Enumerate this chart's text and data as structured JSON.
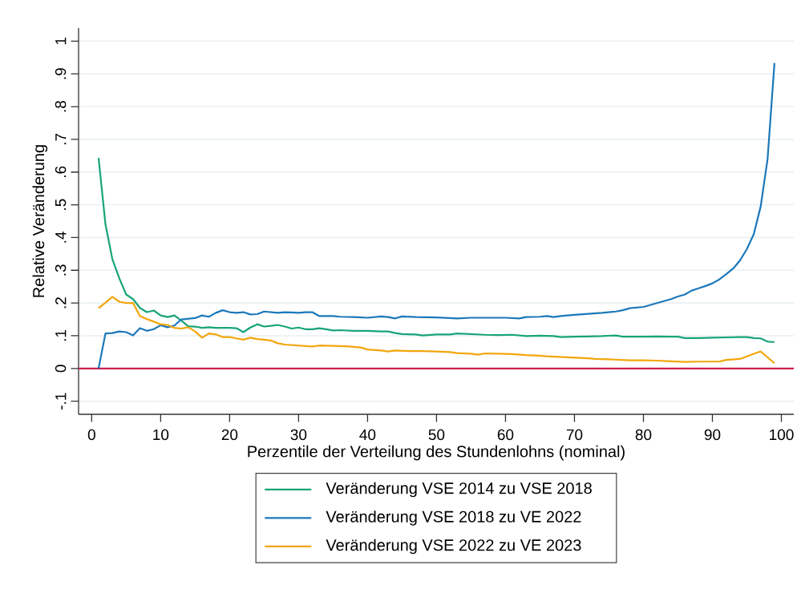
{
  "chart_data": {
    "type": "line",
    "xlabel": "Perzentile der Verteilung des Stundenlohns (nominal)",
    "ylabel": "Relative Veränderung",
    "xlim": [
      -1.9,
      101.8
    ],
    "ylim": [
      -0.14,
      1.04
    ],
    "xticks": [
      0,
      10,
      20,
      30,
      40,
      50,
      60,
      70,
      80,
      90,
      100
    ],
    "yticks": [
      {
        "value": -0.1,
        "label": "-.1"
      },
      0,
      {
        "value": 0.1,
        "label": ".1"
      },
      {
        "value": 0.2,
        "label": ".2"
      },
      {
        "value": 0.3,
        "label": ".3"
      },
      {
        "value": 0.4,
        "label": ".4"
      },
      {
        "value": 0.5,
        "label": ".5"
      },
      {
        "value": 0.6,
        "label": ".6"
      },
      {
        "value": 0.7,
        "label": ".7"
      },
      {
        "value": 0.8,
        "label": ".8"
      },
      {
        "value": 0.9,
        "label": ".9"
      },
      1
    ],
    "grid": "y",
    "legend": "bottom",
    "ref_lines": [
      {
        "axis": "y",
        "value": 0,
        "color": "#cc1f4f"
      }
    ],
    "series": [
      {
        "name": "Veränderung VSE 2014 zu VSE 2018",
        "color": "#18a47a",
        "x": [
          1,
          2,
          3,
          4,
          5,
          6,
          7,
          8,
          9,
          10,
          11,
          12,
          13,
          14,
          15,
          16,
          17,
          18,
          19,
          20,
          21,
          22,
          23,
          24,
          25,
          26,
          27,
          28,
          29,
          30,
          31,
          32,
          33,
          34,
          35,
          36,
          38,
          40,
          42,
          43,
          44,
          45,
          47,
          48,
          50,
          52,
          53,
          55,
          57,
          59,
          61,
          63,
          65,
          67,
          68,
          70,
          72,
          74,
          76,
          77,
          80,
          82,
          84,
          85,
          86,
          88,
          90,
          92,
          94,
          95,
          96,
          97,
          98,
          99
        ],
        "values": [
          0.643,
          0.44,
          0.334,
          0.276,
          0.226,
          0.212,
          0.185,
          0.172,
          0.177,
          0.162,
          0.157,
          0.162,
          0.146,
          0.129,
          0.128,
          0.124,
          0.126,
          0.124,
          0.124,
          0.124,
          0.123,
          0.111,
          0.125,
          0.135,
          0.128,
          0.13,
          0.133,
          0.128,
          0.122,
          0.125,
          0.12,
          0.12,
          0.123,
          0.12,
          0.116,
          0.117,
          0.115,
          0.115,
          0.113,
          0.113,
          0.108,
          0.105,
          0.104,
          0.101,
          0.104,
          0.104,
          0.107,
          0.105,
          0.103,
          0.102,
          0.103,
          0.099,
          0.1,
          0.099,
          0.096,
          0.097,
          0.098,
          0.099,
          0.101,
          0.097,
          0.097,
          0.098,
          0.097,
          0.097,
          0.093,
          0.093,
          0.094,
          0.095,
          0.096,
          0.096,
          0.093,
          0.092,
          0.082,
          0.081
        ]
      },
      {
        "name": "Veränderung VSE 2018 zu VE 2022",
        "color": "#1c78ba",
        "x": [
          1,
          2,
          3,
          4,
          5,
          6,
          7,
          8,
          9,
          10,
          11,
          12,
          13,
          14,
          15,
          16,
          17,
          18,
          19,
          20,
          21,
          22,
          23,
          24,
          25,
          26,
          27,
          28,
          29,
          30,
          31,
          32,
          33,
          34,
          35,
          36,
          38,
          40,
          42,
          43,
          44,
          45,
          47,
          50,
          53,
          55,
          57,
          60,
          62,
          63,
          65,
          66,
          67,
          68,
          70,
          72,
          74,
          76,
          77,
          78,
          80,
          82,
          84,
          85,
          86,
          87,
          88,
          89,
          90,
          91,
          92,
          93,
          94,
          95,
          96,
          97,
          98,
          99
        ],
        "values": [
          0,
          0.107,
          0.108,
          0.113,
          0.111,
          0.101,
          0.123,
          0.115,
          0.12,
          0.132,
          0.126,
          0.131,
          0.15,
          0.152,
          0.154,
          0.162,
          0.158,
          0.17,
          0.178,
          0.172,
          0.17,
          0.172,
          0.165,
          0.166,
          0.174,
          0.172,
          0.17,
          0.172,
          0.171,
          0.17,
          0.172,
          0.172,
          0.16,
          0.16,
          0.16,
          0.158,
          0.157,
          0.155,
          0.159,
          0.157,
          0.153,
          0.159,
          0.157,
          0.156,
          0.153,
          0.155,
          0.155,
          0.155,
          0.153,
          0.157,
          0.158,
          0.16,
          0.157,
          0.16,
          0.164,
          0.167,
          0.17,
          0.174,
          0.178,
          0.184,
          0.188,
          0.2,
          0.212,
          0.22,
          0.226,
          0.238,
          0.245,
          0.252,
          0.26,
          0.272,
          0.288,
          0.305,
          0.33,
          0.365,
          0.41,
          0.495,
          0.64,
          0.933
        ]
      },
      {
        "name": "Veränderung VSE 2022 zu VE 2023",
        "color": "#f2a60d",
        "x": [
          1,
          2,
          3,
          4,
          5,
          6,
          7,
          8,
          9,
          10,
          11,
          12,
          13,
          14,
          15,
          16,
          17,
          18,
          19,
          20,
          21,
          22,
          23,
          24,
          25,
          26,
          27,
          28,
          30,
          32,
          33,
          35,
          37,
          39,
          40,
          42,
          43,
          44,
          46,
          48,
          50,
          52,
          53,
          55,
          56,
          57,
          59,
          61,
          63,
          65,
          66,
          68,
          70,
          72,
          73,
          75,
          78,
          80,
          82,
          84,
          86,
          88,
          90,
          91,
          92,
          94,
          95,
          96,
          97,
          99
        ],
        "values": [
          0.184,
          0.201,
          0.219,
          0.204,
          0.2,
          0.2,
          0.16,
          0.151,
          0.143,
          0.135,
          0.133,
          0.124,
          0.122,
          0.126,
          0.113,
          0.094,
          0.107,
          0.104,
          0.096,
          0.096,
          0.092,
          0.088,
          0.094,
          0.09,
          0.088,
          0.085,
          0.077,
          0.073,
          0.07,
          0.067,
          0.07,
          0.069,
          0.068,
          0.064,
          0.058,
          0.055,
          0.052,
          0.055,
          0.053,
          0.053,
          0.052,
          0.05,
          0.047,
          0.045,
          0.042,
          0.046,
          0.045,
          0.044,
          0.041,
          0.039,
          0.037,
          0.035,
          0.033,
          0.031,
          0.029,
          0.028,
          0.025,
          0.025,
          0.024,
          0.022,
          0.02,
          0.021,
          0.021,
          0.021,
          0.026,
          0.029,
          0.037,
          0.045,
          0.052,
          0.016
        ]
      }
    ]
  }
}
